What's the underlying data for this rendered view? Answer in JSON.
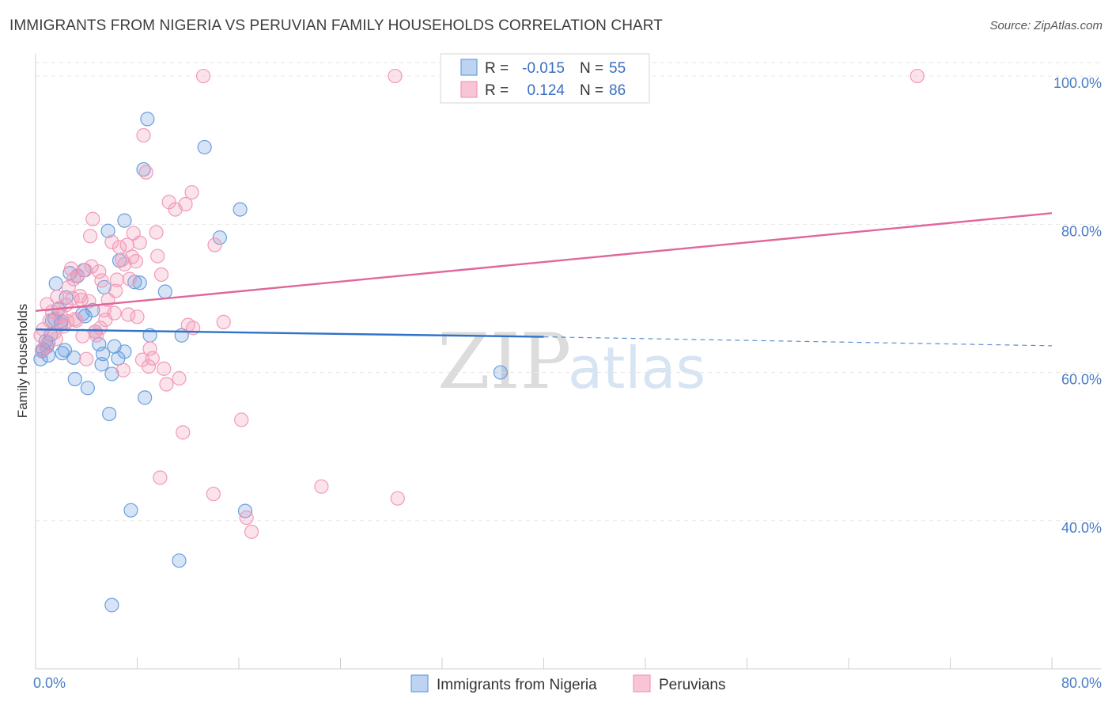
{
  "header": {
    "title": "IMMIGRANTS FROM NIGERIA VS PERUVIAN FAMILY HOUSEHOLDS CORRELATION CHART",
    "source": "Source: ZipAtlas.com"
  },
  "watermark": {
    "zip": "ZIP",
    "atlas": "atlas"
  },
  "chart_data": {
    "type": "scatter",
    "ylabel": "Family Households",
    "xlim": [
      0,
      80
    ],
    "ylim": [
      20,
      103
    ],
    "x_tick_labels": [
      {
        "value": 0,
        "label": "0.0%"
      },
      {
        "value": 80,
        "label": "80.0%"
      }
    ],
    "y_tick_labels": [
      {
        "value": 100,
        "label": "100.0%"
      },
      {
        "value": 80,
        "label": "80.0%"
      },
      {
        "value": 60,
        "label": "60.0%"
      },
      {
        "value": 40,
        "label": "40.0%"
      }
    ],
    "legend": {
      "rows": [
        {
          "r_label": "R =",
          "r_value": "-0.015",
          "n_label": "N =",
          "n_value": "55"
        },
        {
          "r_label": "R =",
          "r_value": "0.124",
          "n_label": "N =",
          "n_value": "86"
        }
      ]
    },
    "series": [
      {
        "name": "Immigrants from Nigeria",
        "color": "#6b9fde",
        "line_color": "#2f72c8",
        "trend": {
          "x0": 0,
          "y0": 65.8,
          "x1": 40,
          "y1": 64.8,
          "dashed_to": 80,
          "dashed_y": 63.6
        },
        "points": [
          [
            0.4,
            61.8
          ],
          [
            0.6,
            63.1
          ],
          [
            0.8,
            64.2
          ],
          [
            0.9,
            63.5
          ],
          [
            1.0,
            62.3
          ],
          [
            1.2,
            65.1
          ],
          [
            1.5,
            67.2
          ],
          [
            1.6,
            72.0
          ],
          [
            1.8,
            68.5
          ],
          [
            2.0,
            66.9
          ],
          [
            2.1,
            62.6
          ],
          [
            2.3,
            63.0
          ],
          [
            2.4,
            70.1
          ],
          [
            2.7,
            73.4
          ],
          [
            3.0,
            62.0
          ],
          [
            3.1,
            59.1
          ],
          [
            3.3,
            73.0
          ],
          [
            3.8,
            73.8
          ],
          [
            3.9,
            67.6
          ],
          [
            4.1,
            57.9
          ],
          [
            4.5,
            68.4
          ],
          [
            4.7,
            65.5
          ],
          [
            5.0,
            63.8
          ],
          [
            5.2,
            61.1
          ],
          [
            5.3,
            62.5
          ],
          [
            5.4,
            71.5
          ],
          [
            5.7,
            79.1
          ],
          [
            5.8,
            54.4
          ],
          [
            6.0,
            59.8
          ],
          [
            6.2,
            63.5
          ],
          [
            6.5,
            61.9
          ],
          [
            6.6,
            75.1
          ],
          [
            7.0,
            62.8
          ],
          [
            7.0,
            80.5
          ],
          [
            7.5,
            41.4
          ],
          [
            7.8,
            72.2
          ],
          [
            8.2,
            72.1
          ],
          [
            8.5,
            87.4
          ],
          [
            8.6,
            56.6
          ],
          [
            8.8,
            94.2
          ],
          [
            9.0,
            65.0
          ],
          [
            10.2,
            70.9
          ],
          [
            11.3,
            34.6
          ],
          [
            11.5,
            65.0
          ],
          [
            13.3,
            90.4
          ],
          [
            14.5,
            78.2
          ],
          [
            16.1,
            82.0
          ],
          [
            16.5,
            41.3
          ],
          [
            6.0,
            28.6
          ],
          [
            36.6,
            60.0
          ],
          [
            1.0,
            64.0
          ],
          [
            2.0,
            66.5
          ],
          [
            0.5,
            62.9
          ],
          [
            3.7,
            67.9
          ],
          [
            1.3,
            67.0
          ]
        ]
      },
      {
        "name": "Peruvians",
        "color": "#f29ab8",
        "line_color": "#e0679a",
        "trend": {
          "x0": 0,
          "y0": 68.3,
          "x1": 80,
          "y1": 81.5
        },
        "points": [
          [
            0.4,
            65.0
          ],
          [
            0.6,
            65.8
          ],
          [
            0.8,
            63.5
          ],
          [
            0.9,
            69.2
          ],
          [
            1.1,
            67.0
          ],
          [
            1.3,
            68.2
          ],
          [
            1.5,
            65.4
          ],
          [
            1.7,
            70.2
          ],
          [
            1.9,
            68.7
          ],
          [
            2.0,
            67.6
          ],
          [
            2.2,
            66.2
          ],
          [
            2.4,
            69.1
          ],
          [
            2.6,
            71.5
          ],
          [
            2.8,
            74.0
          ],
          [
            3.0,
            72.6
          ],
          [
            3.1,
            67.2
          ],
          [
            3.3,
            73.1
          ],
          [
            3.5,
            70.3
          ],
          [
            3.6,
            69.8
          ],
          [
            3.7,
            64.9
          ],
          [
            3.9,
            73.8
          ],
          [
            4.0,
            61.8
          ],
          [
            4.3,
            78.4
          ],
          [
            4.4,
            74.3
          ],
          [
            4.5,
            80.7
          ],
          [
            4.7,
            65.5
          ],
          [
            4.8,
            65.0
          ],
          [
            5.0,
            73.6
          ],
          [
            5.2,
            72.4
          ],
          [
            5.4,
            68.4
          ],
          [
            5.5,
            67.1
          ],
          [
            5.7,
            69.8
          ],
          [
            6.0,
            77.6
          ],
          [
            6.2,
            68.0
          ],
          [
            6.4,
            72.5
          ],
          [
            6.6,
            76.9
          ],
          [
            6.8,
            75.2
          ],
          [
            6.9,
            60.3
          ],
          [
            7.0,
            74.6
          ],
          [
            7.2,
            77.2
          ],
          [
            7.4,
            72.6
          ],
          [
            7.6,
            75.6
          ],
          [
            7.7,
            78.8
          ],
          [
            7.9,
            75.0
          ],
          [
            8.0,
            67.5
          ],
          [
            8.2,
            77.5
          ],
          [
            8.4,
            61.7
          ],
          [
            8.5,
            92.0
          ],
          [
            8.7,
            87.0
          ],
          [
            8.9,
            60.8
          ],
          [
            9.2,
            61.9
          ],
          [
            9.5,
            78.9
          ],
          [
            9.6,
            75.7
          ],
          [
            9.8,
            45.8
          ],
          [
            9.9,
            73.2
          ],
          [
            10.1,
            60.5
          ],
          [
            10.3,
            58.4
          ],
          [
            10.5,
            83.0
          ],
          [
            11.0,
            82.0
          ],
          [
            11.3,
            59.2
          ],
          [
            11.6,
            51.9
          ],
          [
            11.8,
            82.7
          ],
          [
            12.0,
            66.4
          ],
          [
            12.3,
            84.3
          ],
          [
            12.4,
            66.0
          ],
          [
            13.2,
            100.0
          ],
          [
            14.0,
            43.6
          ],
          [
            14.1,
            77.2
          ],
          [
            14.8,
            66.8
          ],
          [
            16.2,
            53.6
          ],
          [
            16.6,
            40.4
          ],
          [
            17.0,
            38.5
          ],
          [
            22.5,
            44.6
          ],
          [
            28.3,
            100.0
          ],
          [
            28.5,
            43.0
          ],
          [
            69.4,
            100.0
          ],
          [
            0.5,
            63.0
          ],
          [
            1.6,
            64.5
          ],
          [
            2.5,
            66.9
          ],
          [
            3.2,
            67.0
          ],
          [
            4.2,
            69.6
          ],
          [
            5.1,
            66.0
          ],
          [
            6.3,
            71.0
          ],
          [
            7.3,
            67.8
          ],
          [
            9.0,
            63.2
          ],
          [
            2.9,
            70.0
          ]
        ]
      }
    ]
  }
}
